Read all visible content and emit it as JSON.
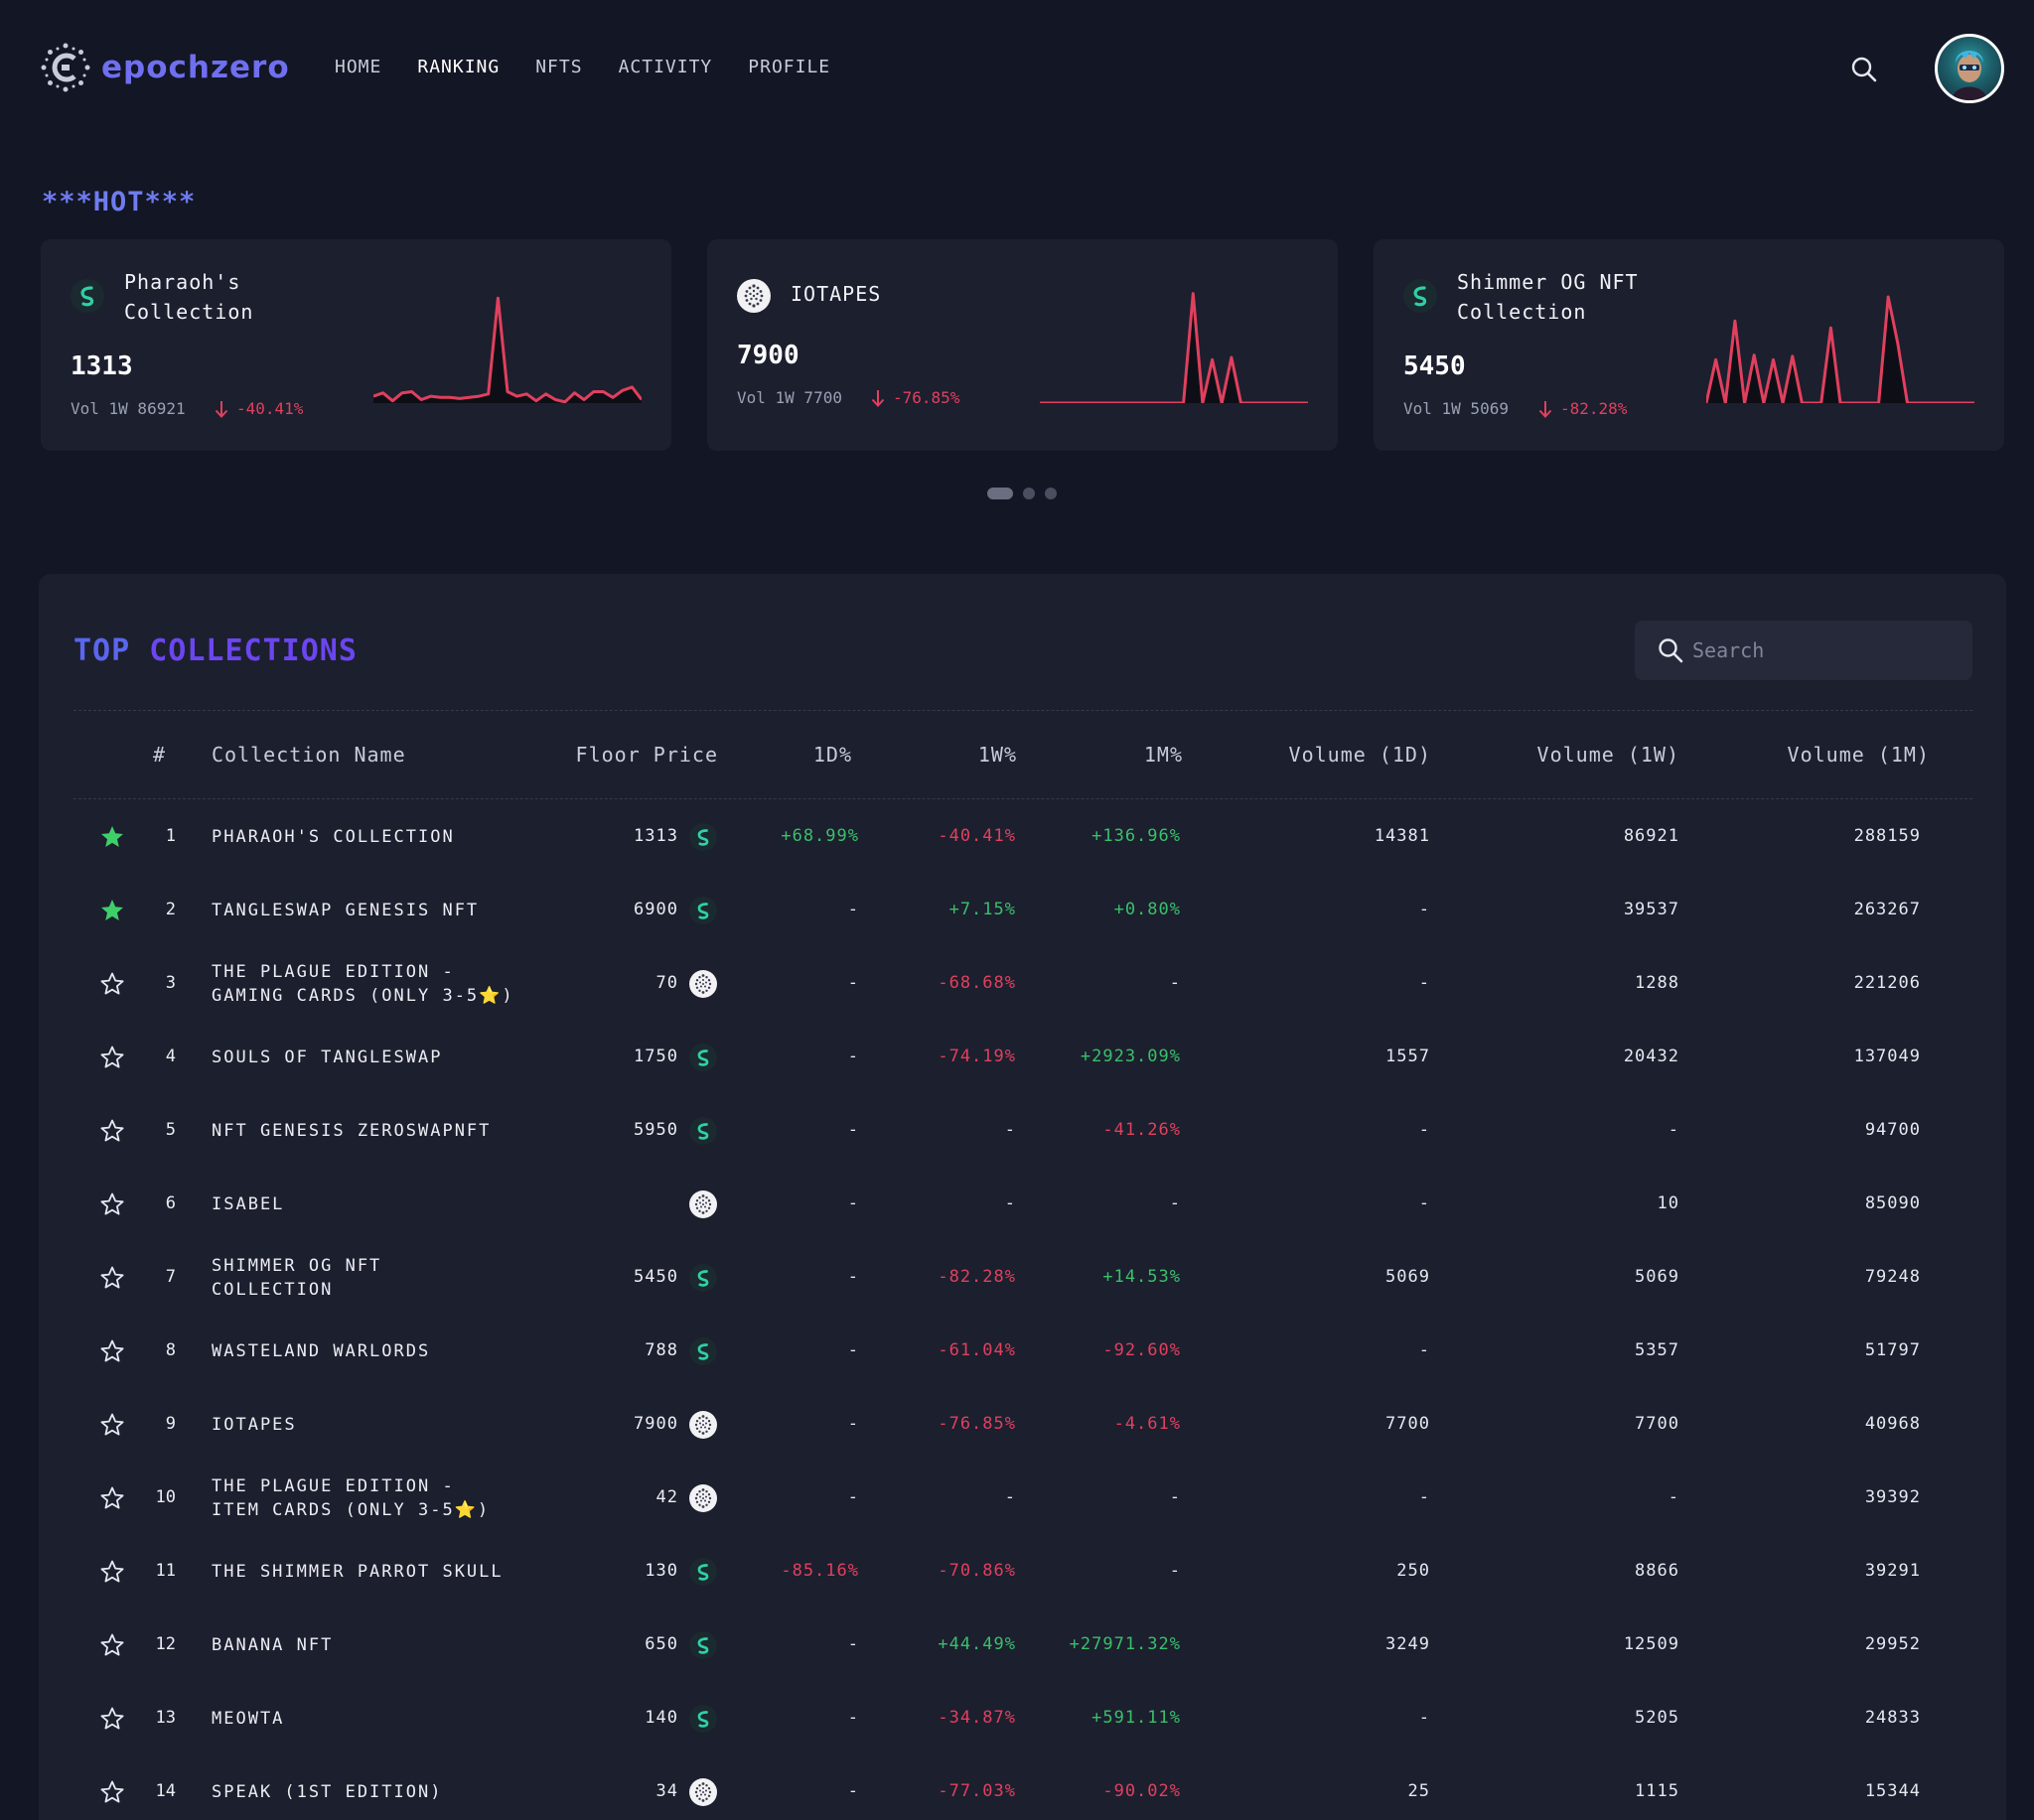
{
  "app": {
    "logo_text": "epochzero"
  },
  "nav": {
    "items": [
      "HOME",
      "RANKING",
      "NFTS",
      "ACTIVITY",
      "PROFILE"
    ],
    "active": "RANKING"
  },
  "hot": {
    "title": "***HOT***",
    "cards": [
      {
        "name": "Pharaoh's Collection",
        "name_lines": [
          "Pharaoh's",
          "Collection"
        ],
        "coin": "shimmer-icon",
        "price": "1313",
        "vol_label": "Vol 1W 86921",
        "change": "-40.41%",
        "spark": [
          0.06,
          0.09,
          0.02,
          0.09,
          0.1,
          0.03,
          0.06,
          0.05,
          0.05,
          0.04,
          0.05,
          0.06,
          0.08,
          0.92,
          0.1,
          0.06,
          0.08,
          0.02,
          0.08,
          0.03,
          0.01,
          0.09,
          0.03,
          0.1,
          0.1,
          0.05,
          0.11,
          0.14,
          0.03
        ]
      },
      {
        "name": "IOTAPES",
        "name_lines": [
          "IOTAPES"
        ],
        "coin": "iota-icon",
        "price": "7900",
        "vol_label": "Vol 1W 7700",
        "change": "-76.85%",
        "spark": [
          0,
          0,
          0,
          0,
          0,
          0,
          0,
          0,
          0,
          0,
          0,
          0,
          0,
          0,
          0,
          0,
          0.96,
          0,
          0.38,
          0,
          0.4,
          0,
          0,
          0,
          0,
          0,
          0,
          0,
          0
        ]
      },
      {
        "name": "Shimmer OG NFT Collection",
        "name_lines": [
          "Shimmer OG NFT",
          "Collection"
        ],
        "coin": "shimmer-icon",
        "price": "5450",
        "vol_label": "Vol 1W 5069",
        "change": "-82.28%",
        "spark": [
          0,
          0.38,
          0,
          0.72,
          0,
          0.42,
          0,
          0.38,
          0,
          0.41,
          0,
          0,
          0,
          0.66,
          0,
          0,
          0,
          0,
          0,
          0.93,
          0.52,
          0,
          0,
          0,
          0,
          0,
          0,
          0,
          0
        ]
      }
    ],
    "pager": {
      "count": 3,
      "active": 0
    }
  },
  "top": {
    "title_1": "TOP",
    "title_2": "COLLECTIONS",
    "search_placeholder": "Search",
    "columns": {
      "rank": "#",
      "name": "Collection Name",
      "floor": "Floor Price",
      "d1": "1D%",
      "w1": "1W%",
      "m1": "1M%",
      "vd": "Volume (1D)",
      "vw": "Volume (1W)",
      "vm": "Volume (1M)"
    },
    "rows": [
      {
        "fav": true,
        "rank": "1",
        "name": [
          "PHARAOH'S COLLECTION"
        ],
        "floor": "1313",
        "coin": "shimmer",
        "d1": "+68.99%",
        "w1": "-40.41%",
        "m1": "+136.96%",
        "vd": "14381",
        "vw": "86921",
        "vm": "288159"
      },
      {
        "fav": true,
        "rank": "2",
        "name": [
          "TANGLESWAP GENESIS NFT"
        ],
        "floor": "6900",
        "coin": "shimmer",
        "d1": "-",
        "w1": "+7.15%",
        "m1": "+0.80%",
        "vd": "-",
        "vw": "39537",
        "vm": "263267"
      },
      {
        "fav": false,
        "rank": "3",
        "name": [
          "THE PLAGUE EDITION -",
          "GAMING CARDS (ONLY 3-5⭐)"
        ],
        "floor": "70",
        "coin": "iota",
        "d1": "-",
        "w1": "-68.68%",
        "m1": "-",
        "vd": "-",
        "vw": "1288",
        "vm": "221206"
      },
      {
        "fav": false,
        "rank": "4",
        "name": [
          "SOULS OF TANGLESWAP"
        ],
        "floor": "1750",
        "coin": "shimmer",
        "d1": "-",
        "w1": "-74.19%",
        "m1": "+2923.09%",
        "vd": "1557",
        "vw": "20432",
        "vm": "137049"
      },
      {
        "fav": false,
        "rank": "5",
        "name": [
          "NFT GENESIS ZEROSWAPNFT"
        ],
        "floor": "5950",
        "coin": "shimmer",
        "d1": "-",
        "w1": "-",
        "m1": "-41.26%",
        "vd": "-",
        "vw": "-",
        "vm": "94700"
      },
      {
        "fav": false,
        "rank": "6",
        "name": [
          "ISABEL"
        ],
        "floor": "",
        "coin": "iota",
        "d1": "-",
        "w1": "-",
        "m1": "-",
        "vd": "-",
        "vw": "10",
        "vm": "85090"
      },
      {
        "fav": false,
        "rank": "7",
        "name": [
          "SHIMMER OG NFT",
          "COLLECTION"
        ],
        "floor": "5450",
        "coin": "shimmer",
        "d1": "-",
        "w1": "-82.28%",
        "m1": "+14.53%",
        "vd": "5069",
        "vw": "5069",
        "vm": "79248"
      },
      {
        "fav": false,
        "rank": "8",
        "name": [
          "WASTELAND WARLORDS"
        ],
        "floor": "788",
        "coin": "shimmer",
        "d1": "-",
        "w1": "-61.04%",
        "m1": "-92.60%",
        "vd": "-",
        "vw": "5357",
        "vm": "51797"
      },
      {
        "fav": false,
        "rank": "9",
        "name": [
          "IOTAPES"
        ],
        "floor": "7900",
        "coin": "iota",
        "d1": "-",
        "w1": "-76.85%",
        "m1": "-4.61%",
        "vd": "7700",
        "vw": "7700",
        "vm": "40968"
      },
      {
        "fav": false,
        "rank": "10",
        "name": [
          "THE PLAGUE EDITION -",
          "ITEM CARDS (ONLY 3-5⭐)"
        ],
        "floor": "42",
        "coin": "iota",
        "d1": "-",
        "w1": "-",
        "m1": "-",
        "vd": "-",
        "vw": "-",
        "vm": "39392"
      },
      {
        "fav": false,
        "rank": "11",
        "name": [
          "THE SHIMMER PARROT SKULL"
        ],
        "floor": "130",
        "coin": "shimmer",
        "d1": "-85.16%",
        "w1": "-70.86%",
        "m1": "-",
        "vd": "250",
        "vw": "8866",
        "vm": "39291"
      },
      {
        "fav": false,
        "rank": "12",
        "name": [
          "BANANA NFT"
        ],
        "floor": "650",
        "coin": "shimmer",
        "d1": "-",
        "w1": "+44.49%",
        "m1": "+27971.32%",
        "vd": "3249",
        "vw": "12509",
        "vm": "29952"
      },
      {
        "fav": false,
        "rank": "13",
        "name": [
          "MEOWTA"
        ],
        "floor": "140",
        "coin": "shimmer",
        "d1": "-",
        "w1": "-34.87%",
        "m1": "+591.11%",
        "vd": "-",
        "vw": "5205",
        "vm": "24833"
      },
      {
        "fav": false,
        "rank": "14",
        "name": [
          "SPEAK (1ST EDITION)"
        ],
        "floor": "34",
        "coin": "iota",
        "d1": "-",
        "w1": "-77.03%",
        "m1": "-90.02%",
        "vd": "25",
        "vw": "1115",
        "vm": "15344"
      }
    ]
  },
  "colors": {
    "background": "#131624",
    "card": "#1c1f2e",
    "accent": "#6f7cf0",
    "positive": "#38c06a",
    "negative": "#e0405e",
    "shimmer": "#2fd0a8"
  }
}
